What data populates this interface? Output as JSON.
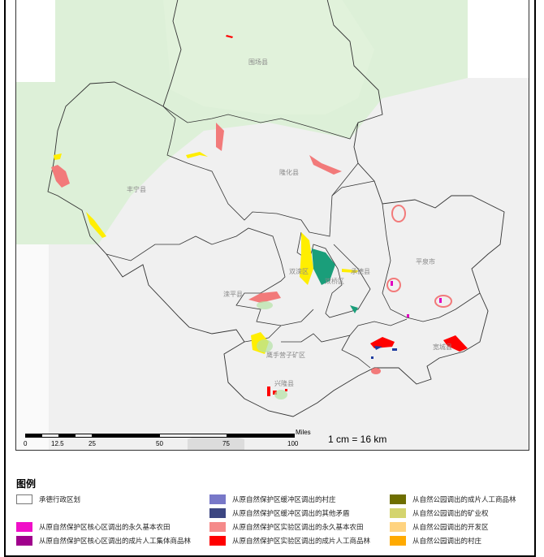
{
  "map": {
    "county_labels": [
      {
        "id": "weichang",
        "text": "围场县"
      },
      {
        "id": "fengning",
        "text": "丰宁县"
      },
      {
        "id": "longhua",
        "text": "隆化县"
      },
      {
        "id": "shuangluan",
        "text": "双滦区"
      },
      {
        "id": "chengde",
        "text": "承德县"
      },
      {
        "id": "shuangqiao",
        "text": "双桥区"
      },
      {
        "id": "pingquan",
        "text": "平泉市"
      },
      {
        "id": "luanping",
        "text": "滦平县"
      },
      {
        "id": "yingshouyingzi",
        "text": "鹰手营子矿区"
      },
      {
        "id": "kuancheng",
        "text": "宽城县"
      },
      {
        "id": "xinglong",
        "text": "兴隆县"
      }
    ],
    "scale_bar": {
      "unit": "Miles",
      "ticks": [
        "0",
        "12.5",
        "25",
        "50",
        "75",
        "100"
      ],
      "ratio": "1 cm = 16 km"
    }
  },
  "legend": {
    "title": "图例",
    "items": [
      {
        "label": "承德行政区划",
        "color": "#ffffff"
      },
      {
        "label": "从原自然保护区缓冲区调出的村庄",
        "color": "#7878c8"
      },
      {
        "label": "从自然公园调出的成片人工商品林",
        "color": "#6e6e00"
      },
      {
        "label": "从原自然保护区缓冲区调出的其他矛盾",
        "color": "#3c4682"
      },
      {
        "label": "从自然公园调出的矿业权",
        "color": "#d4d46e"
      },
      {
        "label": "从原自然保护区核心区调出的永久基本农田",
        "color": "#f00fc8"
      },
      {
        "label": "从原自然保护区实验区调出的永久基本农田",
        "color": "#f58a8a"
      },
      {
        "label": "从自然公园调出的开发区",
        "color": "#ffd37f"
      },
      {
        "label": "从原自然保护区核心区调出的成片人工集体商品林",
        "color": "#a0008c"
      },
      {
        "label": "从原自然保护区实验区调出的成片人工商品林",
        "color": "#ff0000"
      },
      {
        "label": "从自然公园调出的村庄",
        "color": "#ffaa00"
      }
    ]
  }
}
